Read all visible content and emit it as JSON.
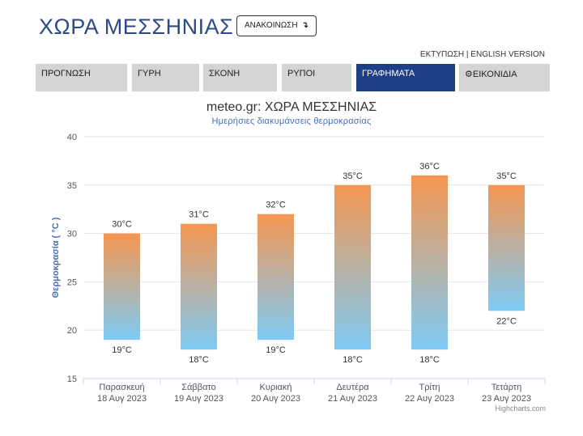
{
  "header": {
    "title": "ΧΩΡΑ ΜΕΣΣΗΝΙΑΣ",
    "announce_label": "ΑΝΑΚΟΙΝΩΣΗ",
    "announce_icon": "arrow-down-return-icon",
    "print_label": "ΕΚΤΥΠΩΣΗ",
    "separator": "|",
    "english_label": "ENGLISH VERSION"
  },
  "nav": {
    "items": [
      {
        "label": "ΠΡΟΓΝΩΣΗ"
      },
      {
        "label": "ΓΥΡΗ"
      },
      {
        "label": "ΣΚΟΝΗ"
      },
      {
        "label": "ΡΥΠΟΙ"
      },
      {
        "label": "ΓΡΑΦΗΜΑΤΑ"
      },
      {
        "label": "ΕΙΚΟΝΙΔΙΑ",
        "icon": "gear-icon"
      }
    ],
    "active_index": 4
  },
  "colors": {
    "title": "#2b4a86",
    "nav_bg": "#d4d4d4",
    "nav_active": "#1e3f87",
    "bar_top": "#f59650",
    "bar_bottom": "#7ecbf5",
    "axis_title": "#4a6fb0"
  },
  "credits": "Highcharts.com",
  "chart_data": {
    "type": "bar",
    "subtype": "columnrange",
    "title": "meteo.gr: ΧΩΡΑ ΜΕΣΣΗΝΙΑΣ",
    "subtitle": "Ημερήσιες διακυμάνσεις θερμοκρασίας",
    "ylabel": "Θερμοκρασία ( °C )",
    "xlabel": "",
    "ylim": [
      15,
      40
    ],
    "yticks": [
      "15",
      "20",
      "25",
      "30",
      "35",
      "40"
    ],
    "grid": true,
    "categories": [
      [
        "Παρασκευή",
        "18 Αυγ 2023"
      ],
      [
        "Σάββατο",
        "19 Αυγ 2023"
      ],
      [
        "Κυριακή",
        "20 Αυγ 2023"
      ],
      [
        "Δευτέρα",
        "21 Αυγ 2023"
      ],
      [
        "Τρίτη",
        "22 Αυγ 2023"
      ],
      [
        "Τετάρτη",
        "23 Αυγ 2023"
      ]
    ],
    "low": [
      19,
      18,
      19,
      18,
      18,
      22
    ],
    "high": [
      30,
      31,
      32,
      35,
      36,
      35
    ],
    "unit": "°C"
  }
}
